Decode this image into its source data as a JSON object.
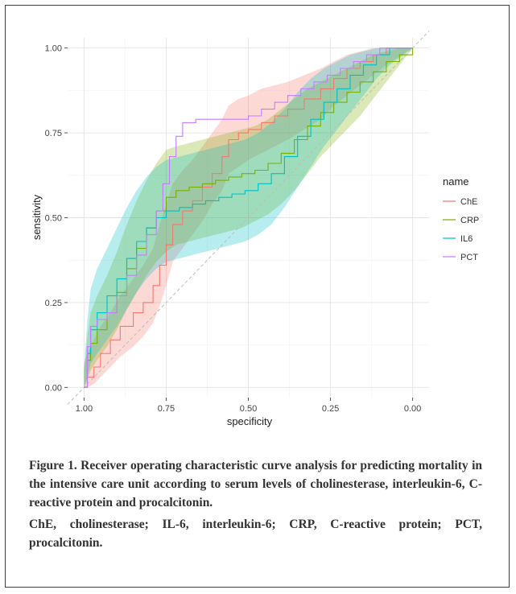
{
  "chart_data": {
    "type": "line",
    "xlabel": "specificity",
    "ylabel": "sensitivity",
    "xlim": [
      1.0,
      0.0
    ],
    "ylim": [
      0.0,
      1.0
    ],
    "x_reversed": true,
    "grid": true,
    "x_ticks": [
      "1.00",
      "0.75",
      "0.50",
      "0.25",
      "0.00"
    ],
    "y_ticks": [
      "0.00",
      "0.25",
      "0.50",
      "0.75",
      "1.00"
    ],
    "diagonal_reference": true,
    "legend_title": "name",
    "legend_position": "right",
    "series": [
      {
        "name": "ChE",
        "color": "#F8766D",
        "points": [
          [
            1.0,
            0.0
          ],
          [
            0.99,
            0.03
          ],
          [
            0.97,
            0.06
          ],
          [
            0.95,
            0.1
          ],
          [
            0.92,
            0.14
          ],
          [
            0.89,
            0.18
          ],
          [
            0.85,
            0.22
          ],
          [
            0.82,
            0.25
          ],
          [
            0.79,
            0.3
          ],
          [
            0.77,
            0.36
          ],
          [
            0.75,
            0.42
          ],
          [
            0.73,
            0.48
          ],
          [
            0.7,
            0.52
          ],
          [
            0.67,
            0.55
          ],
          [
            0.64,
            0.59
          ],
          [
            0.61,
            0.63
          ],
          [
            0.58,
            0.68
          ],
          [
            0.56,
            0.73
          ],
          [
            0.53,
            0.75
          ],
          [
            0.5,
            0.76
          ],
          [
            0.46,
            0.78
          ],
          [
            0.42,
            0.8
          ],
          [
            0.38,
            0.82
          ],
          [
            0.33,
            0.85
          ],
          [
            0.28,
            0.88
          ],
          [
            0.24,
            0.91
          ],
          [
            0.2,
            0.94
          ],
          [
            0.16,
            0.96
          ],
          [
            0.12,
            0.98
          ],
          [
            0.08,
            1.0
          ],
          [
            0.0,
            1.0
          ]
        ],
        "band_lower": [
          0.0,
          0.0,
          0.01,
          0.03,
          0.06,
          0.09,
          0.12,
          0.15,
          0.19,
          0.24,
          0.3,
          0.37,
          0.41,
          0.45,
          0.49,
          0.54,
          0.58,
          0.63,
          0.65,
          0.67,
          0.69,
          0.71,
          0.73,
          0.76,
          0.79,
          0.83,
          0.86,
          0.89,
          0.92,
          0.95,
          1.0
        ],
        "band_upper": [
          0.07,
          0.1,
          0.14,
          0.18,
          0.22,
          0.27,
          0.32,
          0.36,
          0.41,
          0.48,
          0.54,
          0.6,
          0.64,
          0.67,
          0.71,
          0.75,
          0.79,
          0.83,
          0.85,
          0.86,
          0.88,
          0.89,
          0.9,
          0.92,
          0.94,
          0.96,
          0.98,
          0.99,
          1.0,
          1.0,
          1.0
        ]
      },
      {
        "name": "CRP",
        "color": "#7CAE00",
        "points": [
          [
            1.0,
            0.0
          ],
          [
            0.99,
            0.08
          ],
          [
            0.98,
            0.13
          ],
          [
            0.96,
            0.17
          ],
          [
            0.93,
            0.22
          ],
          [
            0.9,
            0.28
          ],
          [
            0.87,
            0.35
          ],
          [
            0.84,
            0.41
          ],
          [
            0.81,
            0.47
          ],
          [
            0.78,
            0.52
          ],
          [
            0.75,
            0.56
          ],
          [
            0.72,
            0.58
          ],
          [
            0.68,
            0.59
          ],
          [
            0.64,
            0.6
          ],
          [
            0.6,
            0.61
          ],
          [
            0.56,
            0.62
          ],
          [
            0.52,
            0.63
          ],
          [
            0.48,
            0.64
          ],
          [
            0.44,
            0.66
          ],
          [
            0.4,
            0.69
          ],
          [
            0.36,
            0.73
          ],
          [
            0.32,
            0.77
          ],
          [
            0.28,
            0.81
          ],
          [
            0.24,
            0.84
          ],
          [
            0.2,
            0.87
          ],
          [
            0.16,
            0.9
          ],
          [
            0.12,
            0.93
          ],
          [
            0.08,
            0.96
          ],
          [
            0.04,
            0.98
          ],
          [
            0.0,
            1.0
          ]
        ],
        "band_lower": [
          0.0,
          0.02,
          0.05,
          0.08,
          0.12,
          0.17,
          0.23,
          0.28,
          0.33,
          0.37,
          0.4,
          0.42,
          0.43,
          0.44,
          0.45,
          0.46,
          0.47,
          0.49,
          0.51,
          0.54,
          0.58,
          0.63,
          0.68,
          0.72,
          0.76,
          0.8,
          0.85,
          0.9,
          0.95,
          1.0
        ],
        "band_upper": [
          0.05,
          0.15,
          0.22,
          0.27,
          0.33,
          0.4,
          0.48,
          0.55,
          0.61,
          0.66,
          0.7,
          0.71,
          0.72,
          0.73,
          0.74,
          0.75,
          0.76,
          0.77,
          0.79,
          0.82,
          0.85,
          0.88,
          0.9,
          0.92,
          0.94,
          0.96,
          0.98,
          0.99,
          1.0,
          1.0
        ]
      },
      {
        "name": "IL6",
        "color": "#00BFC4",
        "points": [
          [
            1.0,
            0.0
          ],
          [
            0.99,
            0.1
          ],
          [
            0.98,
            0.17
          ],
          [
            0.96,
            0.22
          ],
          [
            0.93,
            0.27
          ],
          [
            0.9,
            0.32
          ],
          [
            0.87,
            0.38
          ],
          [
            0.84,
            0.43
          ],
          [
            0.81,
            0.47
          ],
          [
            0.78,
            0.5
          ],
          [
            0.75,
            0.52
          ],
          [
            0.71,
            0.53
          ],
          [
            0.67,
            0.54
          ],
          [
            0.63,
            0.55
          ],
          [
            0.59,
            0.56
          ],
          [
            0.55,
            0.57
          ],
          [
            0.51,
            0.58
          ],
          [
            0.47,
            0.6
          ],
          [
            0.43,
            0.63
          ],
          [
            0.39,
            0.68
          ],
          [
            0.35,
            0.74
          ],
          [
            0.31,
            0.79
          ],
          [
            0.27,
            0.84
          ],
          [
            0.23,
            0.88
          ],
          [
            0.19,
            0.92
          ],
          [
            0.15,
            0.95
          ],
          [
            0.11,
            0.98
          ],
          [
            0.07,
            1.0
          ],
          [
            0.0,
            1.0
          ]
        ],
        "band_lower": [
          0.0,
          0.03,
          0.07,
          0.1,
          0.14,
          0.18,
          0.23,
          0.28,
          0.32,
          0.35,
          0.37,
          0.38,
          0.39,
          0.4,
          0.41,
          0.42,
          0.43,
          0.45,
          0.48,
          0.53,
          0.59,
          0.65,
          0.71,
          0.76,
          0.81,
          0.86,
          0.91,
          0.95,
          1.0
        ],
        "band_upper": [
          0.05,
          0.2,
          0.29,
          0.35,
          0.41,
          0.47,
          0.53,
          0.58,
          0.62,
          0.65,
          0.67,
          0.68,
          0.69,
          0.7,
          0.71,
          0.72,
          0.73,
          0.75,
          0.78,
          0.82,
          0.87,
          0.91,
          0.94,
          0.96,
          0.98,
          0.99,
          1.0,
          1.0,
          1.0
        ]
      },
      {
        "name": "PCT",
        "color": "#C77CFF",
        "points": [
          [
            1.0,
            0.0
          ],
          [
            0.99,
            0.12
          ],
          [
            0.98,
            0.18
          ],
          [
            0.96,
            0.2
          ],
          [
            0.93,
            0.22
          ],
          [
            0.9,
            0.27
          ],
          [
            0.87,
            0.33
          ],
          [
            0.84,
            0.39
          ],
          [
            0.81,
            0.45
          ],
          [
            0.78,
            0.52
          ],
          [
            0.76,
            0.6
          ],
          [
            0.74,
            0.68
          ],
          [
            0.72,
            0.74
          ],
          [
            0.7,
            0.78
          ],
          [
            0.66,
            0.79
          ],
          [
            0.62,
            0.79
          ],
          [
            0.58,
            0.79
          ],
          [
            0.54,
            0.79
          ],
          [
            0.5,
            0.8
          ],
          [
            0.46,
            0.82
          ],
          [
            0.42,
            0.84
          ],
          [
            0.38,
            0.86
          ],
          [
            0.34,
            0.88
          ],
          [
            0.3,
            0.9
          ],
          [
            0.26,
            0.92
          ],
          [
            0.22,
            0.94
          ],
          [
            0.18,
            0.96
          ],
          [
            0.14,
            0.98
          ],
          [
            0.1,
            1.0
          ],
          [
            0.0,
            1.0
          ]
        ],
        "band_lower": [],
        "band_upper": []
      }
    ]
  },
  "caption": {
    "title": "Figure 1. Receiver operating characteristic curve analysis for predicting mortality in the intensive care unit according to serum levels of cholinesterase, interleukin-6, C-reactive protein and procalcitonin.",
    "abbreviations": "ChE, cholinesterase; IL-6, interleukin-6; CRP, C-reactive protein; PCT, procalcitonin."
  }
}
